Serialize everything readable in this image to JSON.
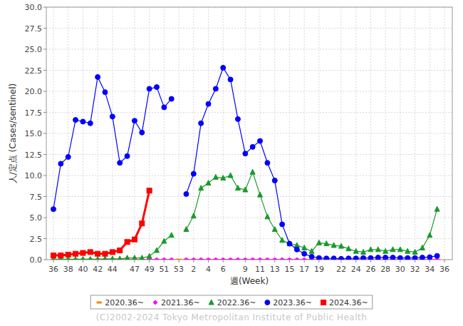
{
  "chart_data": {
    "type": "line",
    "x_label": "週(Week)",
    "y_label": "人/定点 (Cases/sentinel)",
    "footer": "(C)2002-2024 Tokyo Metropolitan Institute of Public Health",
    "categories": [
      "36",
      null,
      "38",
      null,
      "40",
      null,
      "42",
      null,
      "44",
      null,
      null,
      "47",
      null,
      "49",
      null,
      "51",
      null,
      "53",
      null,
      "2",
      null,
      "4",
      null,
      "6",
      null,
      null,
      "9",
      null,
      "11",
      null,
      "13",
      null,
      "15",
      null,
      "17",
      null,
      "19",
      null,
      null,
      "22",
      null,
      "24",
      null,
      "26",
      null,
      "28",
      null,
      "30",
      null,
      "32",
      null,
      "34",
      null,
      "36"
    ],
    "ylim": [
      0,
      30
    ],
    "yticks": [
      {
        "value": 0,
        "label": "0.0"
      },
      {
        "value": 2.5,
        "label": "2.5"
      },
      {
        "value": 5,
        "label": "5.0"
      },
      {
        "value": 7.5,
        "label": "7.5"
      },
      {
        "value": 10,
        "label": "10.0"
      },
      {
        "value": 12.5,
        "label": "12.5"
      },
      {
        "value": 15,
        "label": "15.0"
      },
      {
        "value": 17.5,
        "label": "17.5"
      },
      {
        "value": 20,
        "label": "20.0"
      },
      {
        "value": 22.5,
        "label": "22.5"
      },
      {
        "value": 25,
        "label": "25.0"
      },
      {
        "value": 27.5,
        "label": "27.5"
      },
      {
        "value": 30,
        "label": "30.0"
      }
    ],
    "grid": true,
    "legend": "bottom",
    "series": [
      {
        "name": "2020.36~",
        "color": "#ff8000",
        "marker": "dash",
        "line_style": "solid",
        "values": [
          0,
          0,
          0,
          0,
          0,
          0,
          0,
          0,
          0,
          0,
          0,
          0,
          0,
          0,
          0,
          0,
          0,
          0,
          0,
          0,
          0,
          0,
          0,
          0,
          0,
          0,
          0,
          0,
          0,
          0,
          0,
          0,
          0,
          0,
          0,
          0,
          0,
          0,
          0,
          0,
          0,
          0,
          0,
          0,
          0,
          0,
          0,
          0,
          0,
          0,
          0,
          0,
          0,
          null
        ]
      },
      {
        "name": "2021.36~",
        "color": "#ff00ff",
        "marker": "diamond",
        "line_style": "solid",
        "values": [
          0,
          0,
          0,
          0,
          0,
          0,
          0,
          0,
          0,
          0,
          0,
          0,
          0,
          0,
          0,
          0,
          0,
          null,
          0,
          0,
          0,
          0,
          0,
          0,
          0,
          0,
          0,
          0,
          0,
          0,
          0,
          0,
          0,
          0,
          0,
          0,
          0,
          0,
          0,
          0,
          0,
          0,
          0,
          0,
          0,
          0,
          0,
          0,
          0,
          0,
          0,
          0,
          0,
          null
        ]
      },
      {
        "name": "2022.36~",
        "color": "#1a9a2a",
        "marker": "triangle",
        "line_style": "solid",
        "values": [
          0.05,
          0.05,
          0.05,
          0.05,
          0.05,
          0.05,
          0.05,
          0.1,
          0.1,
          0.1,
          0.2,
          0.2,
          0.2,
          0.4,
          1.1,
          2.2,
          2.9,
          null,
          3.6,
          5.2,
          8.5,
          9.1,
          9.8,
          9.7,
          10.0,
          8.5,
          8.3,
          10.4,
          7.7,
          5.1,
          3.6,
          2.3,
          1.9,
          1.7,
          1.4,
          1.0,
          2.0,
          1.9,
          1.7,
          1.6,
          1.3,
          1.0,
          0.9,
          1.2,
          1.2,
          1.0,
          1.2,
          1.2,
          1.0,
          0.9,
          1.4,
          2.9,
          6.0,
          null
        ]
      },
      {
        "name": "2023.36~",
        "color": "#0000ff",
        "marker": "circle",
        "line_style": "solid",
        "values": [
          6.0,
          11.4,
          12.2,
          16.6,
          16.4,
          16.2,
          21.7,
          19.9,
          17.0,
          11.5,
          12.3,
          16.5,
          15.1,
          20.3,
          20.5,
          18.1,
          19.1,
          null,
          7.8,
          10.2,
          16.2,
          18.5,
          20.3,
          22.8,
          21.4,
          16.7,
          12.6,
          13.4,
          14.1,
          11.5,
          9.4,
          4.2,
          1.9,
          1.2,
          0.7,
          0.35,
          0.2,
          0.15,
          0.15,
          0.1,
          0.15,
          0.15,
          0.2,
          0.2,
          0.25,
          0.25,
          0.25,
          0.2,
          0.2,
          0.2,
          0.25,
          0.3,
          0.45,
          null
        ]
      },
      {
        "name": "2024.36~",
        "color": "#ff0000",
        "marker": "square",
        "line_style": "solid",
        "values": [
          0.5,
          0.5,
          0.6,
          0.7,
          0.8,
          0.9,
          0.7,
          0.7,
          0.9,
          1.1,
          2.1,
          2.4,
          4.3,
          8.2,
          null,
          null,
          null,
          null,
          null,
          null,
          null,
          null,
          null,
          null,
          null,
          null,
          null,
          null,
          null,
          null,
          null,
          null,
          null,
          null,
          null,
          null,
          null,
          null,
          null,
          null,
          null,
          null,
          null,
          null,
          null,
          null,
          null,
          null,
          null,
          null,
          null,
          null,
          null,
          null
        ]
      }
    ]
  }
}
